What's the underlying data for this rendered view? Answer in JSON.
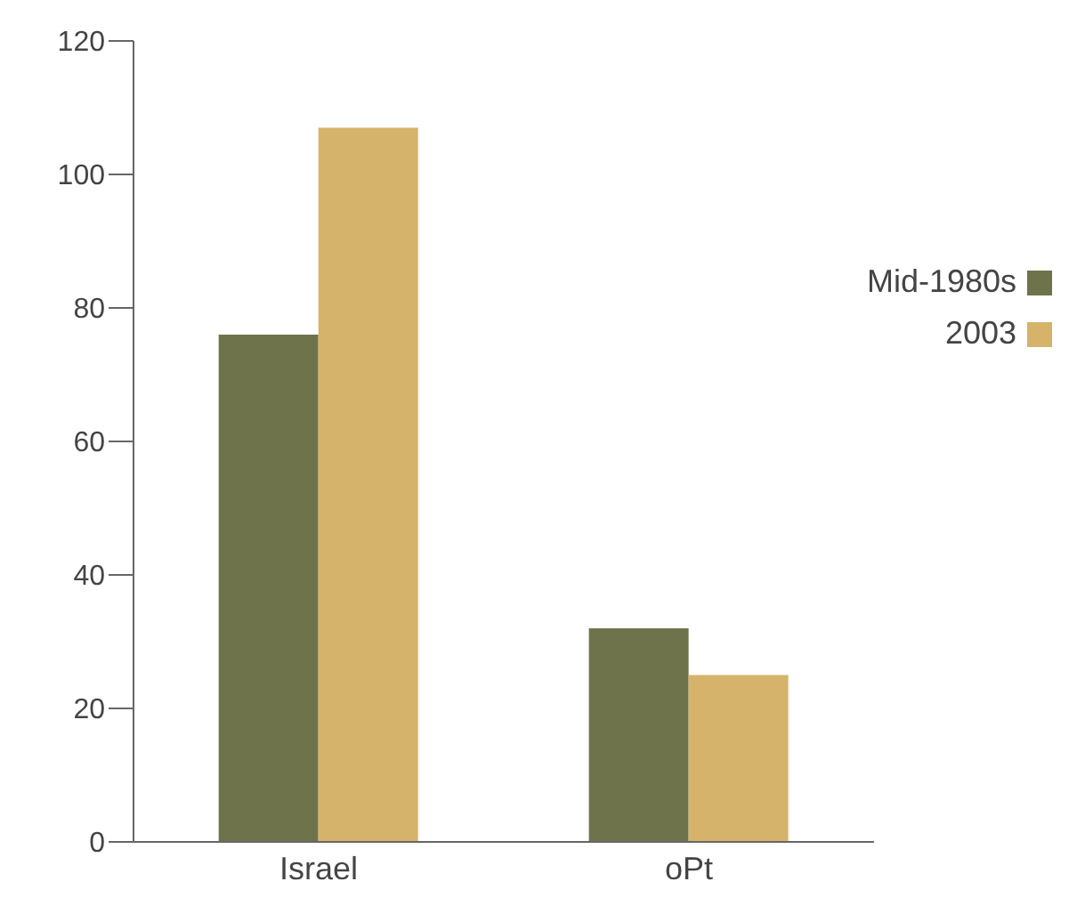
{
  "chart_data": {
    "type": "bar",
    "categories": [
      "Israel",
      "oPt"
    ],
    "series": [
      {
        "name": "Mid-1980s",
        "color": "#6f734c",
        "values": [
          76,
          32
        ]
      },
      {
        "name": "2003",
        "color": "#d5b36a",
        "values": [
          107,
          25
        ]
      }
    ],
    "ylim": [
      0,
      120
    ],
    "yticks": [
      0,
      20,
      40,
      60,
      80,
      100,
      120
    ],
    "grid": false,
    "legend": "top right"
  }
}
